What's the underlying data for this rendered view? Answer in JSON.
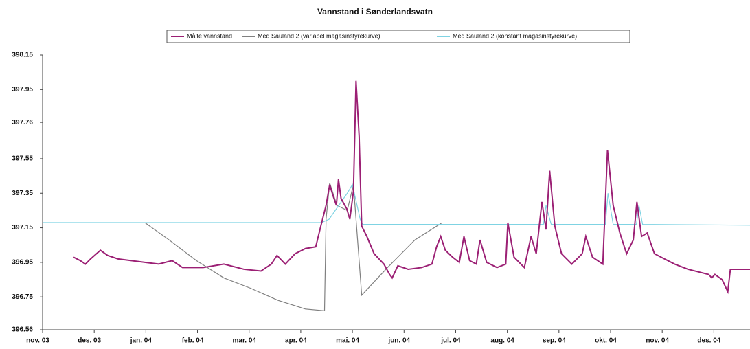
{
  "chart_data": {
    "type": "line",
    "title": "Vannstand i Sønderlandsvatn",
    "xlim": [
      0,
      13.7
    ],
    "xticks": [
      {
        "value": 0,
        "label": "nov. 03"
      },
      {
        "value": 1,
        "label": "des. 03"
      },
      {
        "value": 2,
        "label": "jan. 04"
      },
      {
        "value": 3,
        "label": "feb. 04"
      },
      {
        "value": 4,
        "label": "mar. 04"
      },
      {
        "value": 5,
        "label": "apr. 04"
      },
      {
        "value": 6,
        "label": "mai. 04"
      },
      {
        "value": 7,
        "label": "jun. 04"
      },
      {
        "value": 8,
        "label": "jul. 04"
      },
      {
        "value": 9,
        "label": "aug. 04"
      },
      {
        "value": 10,
        "label": "sep. 04"
      },
      {
        "value": 11,
        "label": "okt. 04"
      },
      {
        "value": 12,
        "label": "nov. 04"
      },
      {
        "value": 13,
        "label": "des. 04"
      }
    ],
    "ylim": [
      396.56,
      398.15
    ],
    "yticks": [
      396.56,
      396.75,
      396.95,
      397.15,
      397.35,
      397.55,
      397.76,
      397.95,
      398.15
    ],
    "grid": false,
    "series": [
      {
        "name": "Målte vannstand",
        "color": "#9b1f74",
        "x": [
          0.6,
          0.73,
          0.83,
          0.93,
          1.12,
          1.26,
          1.46,
          1.72,
          1.98,
          2.25,
          2.51,
          2.71,
          3.11,
          3.51,
          3.9,
          4.23,
          4.43,
          4.54,
          4.7,
          4.89,
          5.09,
          5.29,
          5.38,
          5.49,
          5.56,
          5.62,
          5.69,
          5.73,
          5.78,
          5.89,
          5.95,
          6.02,
          6.07,
          6.13,
          6.18,
          6.28,
          6.42,
          6.61,
          6.72,
          6.77,
          6.88,
          7.08,
          7.34,
          7.54,
          7.63,
          7.71,
          7.8,
          7.94,
          8.07,
          8.16,
          8.27,
          8.4,
          8.47,
          8.6,
          8.8,
          8.97,
          9.01,
          9.13,
          9.33,
          9.46,
          9.56,
          9.67,
          9.75,
          9.82,
          9.92,
          10.05,
          10.25,
          10.45,
          10.52,
          10.65,
          10.85,
          10.94,
          11.05,
          11.18,
          11.31,
          11.44,
          11.51,
          11.6,
          11.71,
          11.85,
          11.98,
          12.24,
          12.5,
          12.9,
          12.96,
          13.02,
          13.16,
          13.27,
          13.32,
          13.7
        ],
        "values": [
          396.98,
          396.96,
          396.94,
          396.97,
          397.02,
          396.99,
          396.97,
          396.96,
          396.95,
          396.94,
          396.96,
          396.92,
          396.92,
          396.94,
          396.91,
          396.9,
          396.94,
          396.99,
          396.94,
          397.0,
          397.03,
          397.04,
          397.15,
          397.28,
          397.4,
          397.34,
          397.28,
          397.43,
          397.32,
          397.26,
          397.2,
          397.36,
          398.0,
          397.68,
          397.16,
          397.1,
          397.0,
          396.94,
          396.88,
          396.86,
          396.93,
          396.91,
          396.92,
          396.94,
          397.04,
          397.1,
          397.02,
          396.98,
          396.95,
          397.1,
          396.96,
          396.94,
          397.08,
          396.95,
          396.92,
          396.94,
          397.18,
          396.98,
          396.92,
          397.1,
          397.0,
          397.3,
          397.14,
          397.48,
          397.16,
          397.0,
          396.94,
          397.0,
          397.1,
          396.98,
          396.94,
          397.6,
          397.28,
          397.12,
          397.0,
          397.08,
          397.3,
          397.1,
          397.12,
          397.0,
          396.98,
          396.94,
          396.91,
          396.88,
          396.86,
          396.88,
          396.85,
          396.78,
          396.91,
          396.91
        ]
      },
      {
        "name": "Med Sauland 2 (variabel magasinstyrekurve)",
        "color": "#808080",
        "x": [
          1.98,
          2.45,
          2.98,
          3.51,
          4.03,
          4.56,
          5.09,
          5.46,
          5.49,
          5.56,
          5.7,
          5.9,
          6.02,
          6.18,
          6.68,
          7.21,
          7.74
        ],
        "values": [
          397.18,
          397.08,
          396.96,
          396.86,
          396.8,
          396.73,
          396.68,
          396.67,
          397.2,
          397.41,
          397.28,
          397.25,
          397.4,
          396.76,
          396.92,
          397.08,
          397.18
        ]
      },
      {
        "name": "Med Sauland 2 (konstant magasinstyrekurve)",
        "color": "#7fd3e3",
        "x": [
          0,
          5.4,
          5.55,
          5.9,
          6.0,
          6.15,
          6.2,
          9.7,
          9.75,
          9.85,
          10.9,
          10.95,
          11.05,
          11.5,
          11.55,
          11.62,
          13.7
        ],
        "values": [
          397.18,
          397.18,
          397.2,
          397.35,
          397.4,
          397.2,
          397.17,
          397.17,
          397.28,
          397.17,
          397.17,
          397.35,
          397.17,
          397.17,
          397.28,
          397.17,
          397.165
        ]
      }
    ]
  }
}
